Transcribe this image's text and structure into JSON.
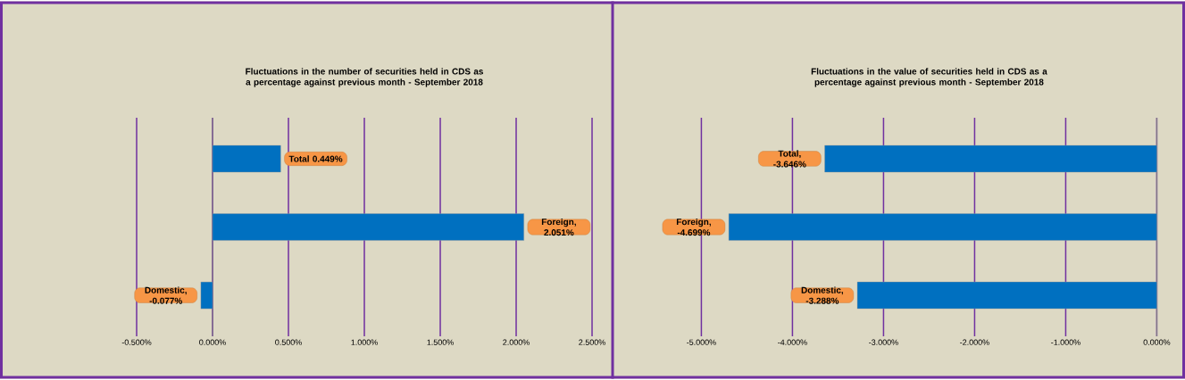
{
  "chart_data": [
    {
      "type": "bar",
      "orientation": "horizontal",
      "title": "Fluctuations in the number of securities held in CDS as a percentage against previous month - September 2018",
      "categories": [
        null,
        null,
        null
      ],
      "values": [
        0.449,
        2.051,
        -0.077
      ],
      "value_labels": [
        "Total 0.449%",
        "Foreign, 2.051%",
        "Domestic, -0.077%"
      ],
      "color": "#0070c0",
      "xlim": [
        -0.5,
        2.5
      ],
      "xticks": [
        {
          "value": -0.5,
          "label": "-0.500%"
        },
        {
          "value": 0,
          "label": "0.000%"
        },
        {
          "value": 0.5,
          "label": "0.500%"
        },
        {
          "value": 1,
          "label": "1.000%"
        },
        {
          "value": 1.5,
          "label": "1.500%"
        },
        {
          "value": 2,
          "label": "2.000%"
        },
        {
          "value": 2.5,
          "label": "2.500%"
        }
      ],
      "grid": "x"
    },
    {
      "type": "bar",
      "orientation": "horizontal",
      "title": "Fluctuations in the value of securities held in CDS as a percentage against previous month - September 2018",
      "categories": [
        null,
        null,
        null
      ],
      "values": [
        -3.646,
        -4.699,
        -3.288
      ],
      "value_labels": [
        "Total, -3.646%",
        "Foreign, -4.699%",
        "Domestic, -3.288%"
      ],
      "color": "#0070c0",
      "xlim": [
        -5,
        0
      ],
      "xticks": [
        {
          "value": -5,
          "label": "-5.000%"
        },
        {
          "value": -4,
          "label": "-4.000%"
        },
        {
          "value": -3,
          "label": "-3.000%"
        },
        {
          "value": -2,
          "label": "-2.000%"
        },
        {
          "value": -1,
          "label": "-1.000%"
        },
        {
          "value": 0,
          "label": "0.000%"
        }
      ],
      "grid": "x"
    }
  ]
}
